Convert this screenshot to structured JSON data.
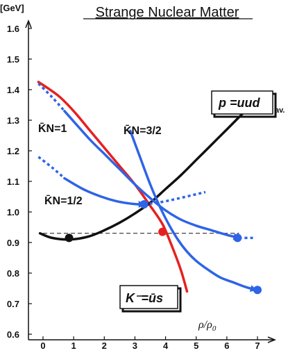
{
  "chart_data": {
    "type": "line",
    "title": "Strange Nuclear Matter",
    "y_unit": "[GeV]",
    "xlabel": "ρ/ρ",
    "xlabel_sub": "0",
    "xlim": [
      0,
      7
    ],
    "ylim": [
      0.6,
      1.6
    ],
    "x_ticks": [
      "0",
      "1",
      "2",
      "3",
      "4",
      "5",
      "6",
      "7"
    ],
    "y_ticks": [
      "0.6",
      "0.7",
      "0.8",
      "0.9",
      "1.0",
      "1.1",
      "1.2",
      "1.3",
      "1.4",
      "1.5",
      "1.6"
    ],
    "grid": false,
    "colors": {
      "kaon": "#e62020",
      "kbar_n": "#2e64e6",
      "proton": "#111111",
      "dash": "#111111"
    },
    "reference_line": {
      "y": 0.93,
      "x_range": [
        0,
        6.4
      ],
      "style": "dashed"
    },
    "series": [
      {
        "name": "K⁻=ūs",
        "color": "#e62020",
        "x": [
          -0.15,
          0.5,
          1.0,
          1.5,
          2.0,
          2.5,
          3.0,
          3.5,
          3.9,
          4.2,
          4.5,
          4.7
        ],
        "y": [
          1.425,
          1.38,
          1.33,
          1.27,
          1.21,
          1.15,
          1.09,
          1.02,
          0.96,
          0.89,
          0.81,
          0.74
        ],
        "markers": [
          {
            "x": 3.9,
            "y": 0.935
          }
        ]
      },
      {
        "name": "p =uud",
        "color": "#111111",
        "x": [
          -0.1,
          0.3,
          0.9,
          1.5,
          2.0,
          2.5,
          3.0,
          3.5,
          4.0,
          4.5,
          5.0,
          5.5,
          6.0,
          6.6
        ],
        "y": [
          0.93,
          0.915,
          0.91,
          0.92,
          0.94,
          0.965,
          0.995,
          1.03,
          1.075,
          1.12,
          1.17,
          1.22,
          1.27,
          1.33
        ],
        "markers": [
          {
            "x": 0.85,
            "y": 0.915
          }
        ]
      },
      {
        "name": "K̄N=1",
        "color": "#2e64e6",
        "dotted": {
          "x": [
            -0.15,
            0.3,
            0.7
          ],
          "y": [
            1.42,
            1.375,
            1.33
          ]
        },
        "x": [
          0.7,
          1.5,
          2.0,
          2.5,
          3.0,
          3.5,
          4.0,
          4.5,
          5.0,
          5.5,
          6.0,
          6.4
        ],
        "y": [
          1.33,
          1.24,
          1.19,
          1.14,
          1.09,
          1.045,
          1.005,
          0.975,
          0.955,
          0.94,
          0.925,
          0.915
        ],
        "dotted_end": {
          "x": [
            6.4,
            6.9
          ],
          "y": [
            0.915,
            0.915
          ]
        },
        "markers": [
          {
            "x": 6.35,
            "y": 0.915
          }
        ]
      },
      {
        "name": "K̄N=3/2",
        "color": "#2e64e6",
        "x": [
          2.85,
          3.2,
          3.5,
          3.8,
          4.1,
          4.4,
          4.7,
          5.0,
          5.4,
          5.8,
          6.2,
          6.6,
          6.95
        ],
        "y": [
          1.265,
          1.17,
          1.09,
          1.02,
          0.96,
          0.91,
          0.87,
          0.84,
          0.81,
          0.785,
          0.77,
          0.755,
          0.745
        ],
        "markers": [
          {
            "x": 7.0,
            "y": 0.745
          }
        ]
      },
      {
        "name": "K̄N=1/2",
        "color": "#2e64e6",
        "dotted": {
          "x": [
            -0.15,
            0.3,
            0.7
          ],
          "y": [
            1.18,
            1.145,
            1.11
          ]
        },
        "x": [
          0.7,
          1.3,
          1.9,
          2.4,
          2.8,
          3.1,
          3.3
        ],
        "y": [
          1.11,
          1.075,
          1.05,
          1.035,
          1.028,
          1.025,
          1.025
        ],
        "dotted_end": {
          "x": [
            3.3,
            4.0,
            5.3
          ],
          "y": [
            1.025,
            1.035,
            1.065
          ]
        },
        "markers": [
          {
            "x": 3.3,
            "y": 1.025
          }
        ]
      }
    ]
  },
  "labels": {
    "kn1": "K̄N=1",
    "kn32": "K̄N=3/2",
    "kn12": "K̄N=1/2",
    "proton_text": "p =uud",
    "proton_sub": "av.",
    "kaon_text": "K⁻=ūs"
  }
}
